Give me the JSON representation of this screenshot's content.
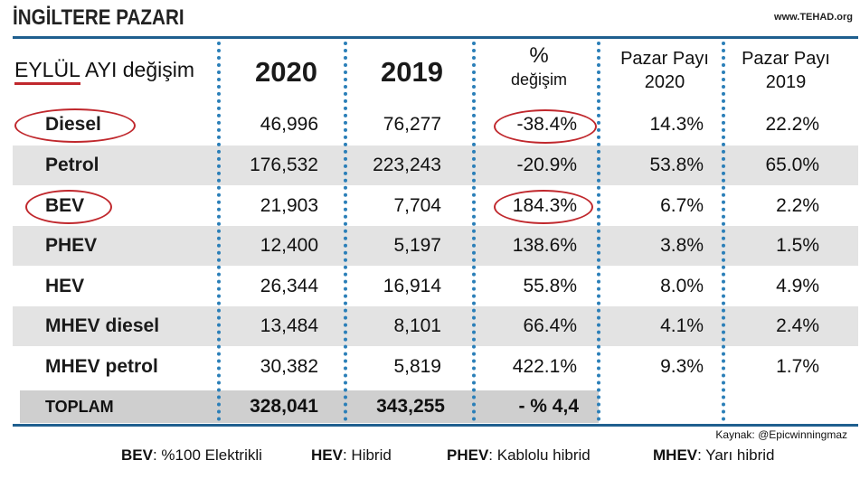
{
  "title": "İNGİLTERE PAZARI",
  "site": "www.TEHAD.org",
  "header": {
    "month_underlined": "EYLÜL",
    "month_rest": "AYI değişim",
    "col_2020": "2020",
    "col_2019": "2019",
    "pct_symbol": "%",
    "pct_label": "değişim",
    "share_label": "Pazar Payı",
    "share_2020": "2020",
    "share_2019": "2019"
  },
  "rows": [
    {
      "label": "Diesel",
      "v2020": "46,996",
      "v2019": "76,277",
      "change": "-38.4%",
      "share2020": "14.3%",
      "share2019": "22.2%"
    },
    {
      "label": "Petrol",
      "v2020": "176,532",
      "v2019": "223,243",
      "change": "-20.9%",
      "share2020": "53.8%",
      "share2019": "65.0%"
    },
    {
      "label": "BEV",
      "v2020": "21,903",
      "v2019": "7,704",
      "change": "184.3%",
      "share2020": "6.7%",
      "share2019": "2.2%"
    },
    {
      "label": "PHEV",
      "v2020": "12,400",
      "v2019": "5,197",
      "change": "138.6%",
      "share2020": "3.8%",
      "share2019": "1.5%"
    },
    {
      "label": "HEV",
      "v2020": "26,344",
      "v2019": "16,914",
      "change": "55.8%",
      "share2020": "8.0%",
      "share2019": "4.9%"
    },
    {
      "label": "MHEV diesel",
      "v2020": "13,484",
      "v2019": "8,101",
      "change": "66.4%",
      "share2020": "4.1%",
      "share2019": "2.4%"
    },
    {
      "label": "MHEV petrol",
      "v2020": "30,382",
      "v2019": "5,819",
      "change": "422.1%",
      "share2020": "9.3%",
      "share2019": "1.7%"
    }
  ],
  "total": {
    "label": "TOPLAM",
    "v2020": "328,041",
    "v2019": "343,255",
    "change": "- % 4,4"
  },
  "source": "Kaynak: @Epicwinningmaz",
  "legend": [
    {
      "abbr": "BEV",
      "text": "%100 Elektrikli"
    },
    {
      "abbr": "HEV",
      "text": "Hibrid"
    },
    {
      "abbr": "PHEV",
      "text": "Kablolu hibrid"
    },
    {
      "abbr": "MHEV",
      "text": "Yarı hibrid"
    }
  ],
  "colors": {
    "accent_line": "#1f5f8f",
    "dots": "#2b7fb8",
    "highlight_circle": "#c0282d",
    "row_shade": "#e3e3e3",
    "total_shade": "#cfcfcf"
  }
}
